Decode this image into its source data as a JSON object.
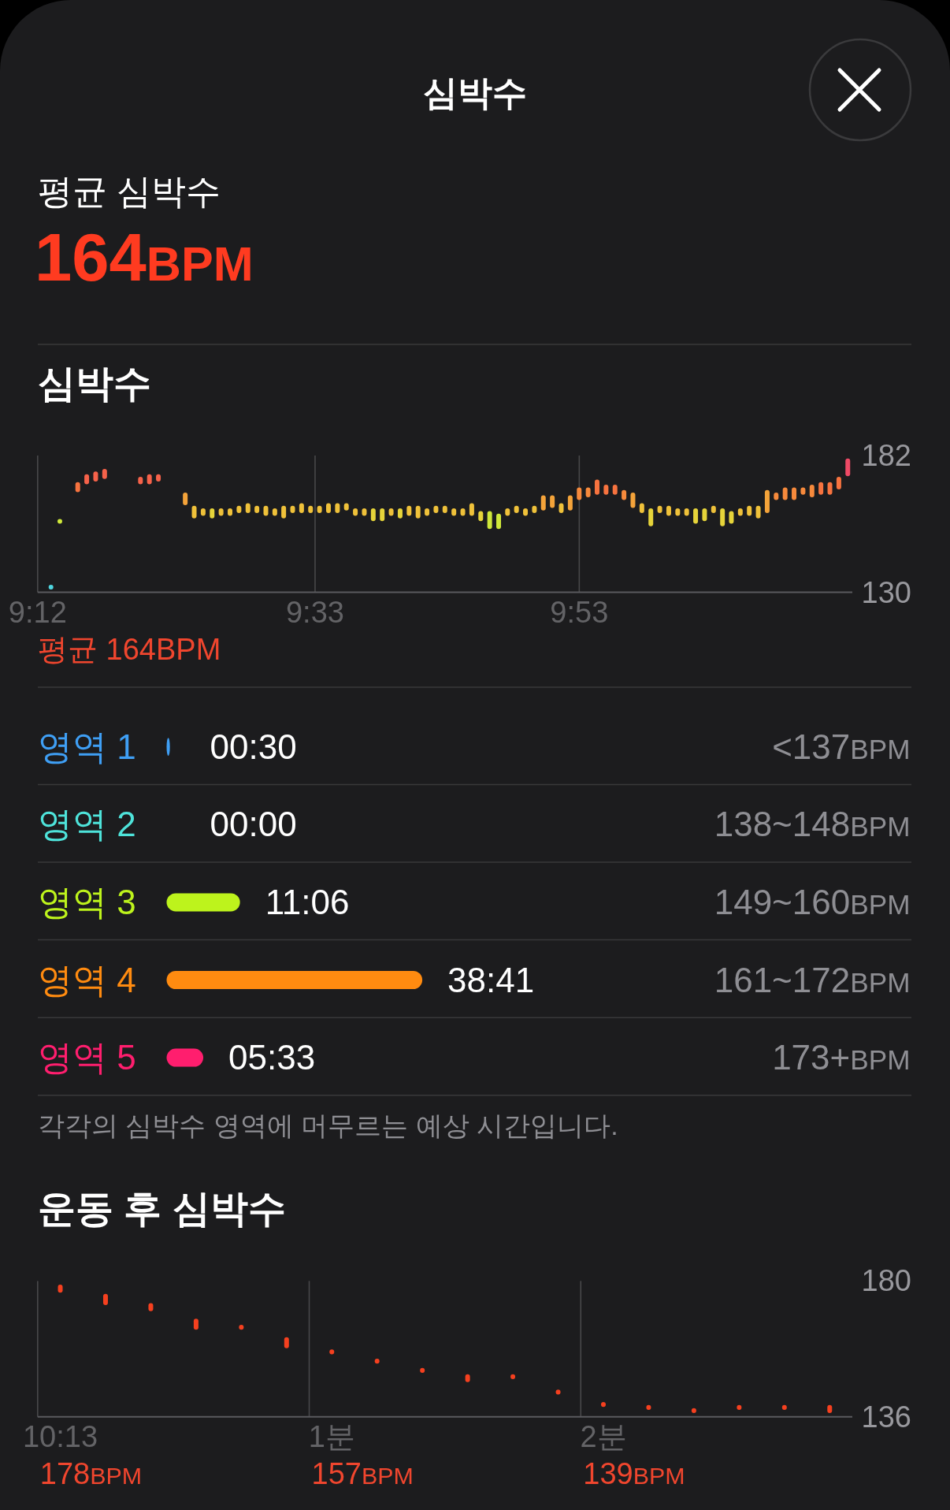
{
  "chart_data": [
    {
      "type": "other",
      "title": "심박수",
      "subtitle": "평균 심박수",
      "annotations": [
        "164BPM"
      ]
    },
    {
      "type": "bar",
      "title": "심박수",
      "xlim": [
        9.2,
        10.2278
      ],
      "xticks": [
        {
          "value": 9.2,
          "label": "9:12"
        },
        {
          "value": 9.55,
          "label": "9:33"
        },
        {
          "value": 9.8833,
          "label": "9:53"
        }
      ],
      "ylim": [
        130,
        182
      ],
      "yticks": [
        182,
        130
      ],
      "grid": "x",
      "x": [
        9.2168,
        9.228,
        9.2506,
        9.2619,
        9.2732,
        9.2845,
        9.3297,
        9.341,
        9.3523,
        9.3862,
        9.3975,
        9.4088,
        9.4201,
        9.4314,
        9.4427,
        9.454,
        9.4653,
        9.4766,
        9.4879,
        9.4992,
        9.5104,
        9.5217,
        9.533,
        9.5443,
        9.5556,
        9.5669,
        9.5782,
        9.5895,
        9.6008,
        9.6121,
        9.6234,
        9.6347,
        9.646,
        9.6573,
        9.6686,
        9.6799,
        9.6912,
        9.7025,
        9.7138,
        9.7251,
        9.7364,
        9.7477,
        9.759,
        9.7703,
        9.7816,
        9.7928,
        9.8041,
        9.8154,
        9.8267,
        9.838,
        9.8493,
        9.8606,
        9.8719,
        9.8832,
        9.8945,
        9.9058,
        9.9171,
        9.9284,
        9.9397,
        9.951,
        9.9623,
        9.9736,
        9.9849,
        9.9962,
        10.0075,
        10.0188,
        10.0301,
        10.0414,
        10.0527,
        10.064,
        10.0752,
        10.0865,
        10.0978,
        10.1091,
        10.1204,
        10.1317,
        10.143,
        10.1543,
        10.1656,
        10.1769,
        10.1882,
        10.1995,
        10.2108,
        10.2221
      ],
      "base": [
        131.1,
        156.1,
        168.1,
        171.1,
        172.1,
        173.1,
        171.1,
        171.1,
        172.1,
        163.1,
        158.1,
        159.1,
        158.1,
        159.1,
        159.1,
        160.1,
        160.1,
        160.1,
        159.1,
        159.1,
        158.1,
        160.1,
        160.1,
        160.1,
        160.1,
        160.1,
        160.1,
        161.1,
        159.1,
        159.1,
        157.1,
        157.1,
        159.1,
        158.1,
        159.1,
        158.1,
        159.1,
        160.1,
        160.1,
        159.1,
        159.1,
        159.1,
        157.1,
        154.1,
        154.1,
        159.1,
        160.1,
        159.1,
        160.1,
        161.1,
        162.1,
        160.1,
        161.1,
        165.1,
        166.1,
        167.1,
        167.1,
        167.1,
        165.1,
        162.1,
        160.1,
        155.1,
        160.1,
        159.1,
        159.1,
        159.1,
        156.1,
        157.1,
        160.1,
        155.1,
        156.1,
        159.1,
        159.1,
        158.1,
        160.1,
        165.1,
        165.1,
        165.1,
        167.1,
        166.1,
        167.1,
        167.1,
        169.1,
        174.1
      ],
      "values": [
        1.8,
        1.8,
        3.8,
        3.8,
        3.8,
        3.8,
        2.8,
        3.8,
        2.8,
        4.8,
        4.8,
        2.8,
        3.8,
        2.8,
        2.8,
        2.8,
        3.8,
        2.8,
        3.8,
        2.8,
        4.8,
        2.8,
        3.8,
        2.8,
        2.8,
        3.8,
        3.8,
        2.8,
        2.8,
        2.8,
        4.8,
        4.8,
        2.8,
        3.8,
        3.8,
        4.8,
        2.8,
        2.8,
        2.8,
        2.8,
        2.8,
        4.8,
        3.8,
        6.8,
        5.8,
        2.8,
        2.8,
        2.8,
        2.8,
        5.8,
        4.8,
        3.8,
        5.8,
        4.8,
        3.8,
        5.8,
        3.8,
        3.8,
        3.8,
        5.8,
        3.8,
        6.8,
        2.8,
        3.8,
        2.8,
        2.8,
        5.8,
        4.8,
        2.8,
        6.8,
        4.8,
        2.8,
        3.8,
        4.8,
        8.8,
        2.8,
        4.8,
        4.8,
        2.8,
        4.8,
        4.8,
        4.8,
        4.8,
        6.8
      ],
      "colors": [
        "#4fd6e0",
        "#cfe83a",
        "#f7733f",
        "#f6624a",
        "#f6624a",
        "#f6624a",
        "#f6624a",
        "#f6624a",
        "#f6624a",
        "#f4a33a",
        "#efc13a",
        "#efc13a",
        "#e6d43a",
        "#efc13a",
        "#efc13a",
        "#efc13a",
        "#efc13a",
        "#efc13a",
        "#efc13a",
        "#efc13a",
        "#efc13a",
        "#efc13a",
        "#efc13a",
        "#efc13a",
        "#efc13a",
        "#efc13a",
        "#efc13a",
        "#efc13a",
        "#efc13a",
        "#efc13a",
        "#e6d43a",
        "#e6d43a",
        "#efc13a",
        "#e6d43a",
        "#efc13a",
        "#efc13a",
        "#efc13a",
        "#efc13a",
        "#efc13a",
        "#efc13a",
        "#efc13a",
        "#efc13a",
        "#e6d43a",
        "#cfe83a",
        "#cfe83a",
        "#efc13a",
        "#efc13a",
        "#efc13a",
        "#efc13a",
        "#f4a33a",
        "#f4a33a",
        "#efc13a",
        "#f4a33a",
        "#f78a3c",
        "#f78a3c",
        "#f7733f",
        "#f7733f",
        "#f7733f",
        "#f78a3c",
        "#f4a33a",
        "#efc13a",
        "#e6d43a",
        "#efc13a",
        "#efc13a",
        "#efc13a",
        "#efc13a",
        "#e6d43a",
        "#e6d43a",
        "#efc13a",
        "#e6d43a",
        "#e6d43a",
        "#efc13a",
        "#efc13a",
        "#efc13a",
        "#f4a33a",
        "#f78a3c",
        "#f78a3c",
        "#f78a3c",
        "#f78a3c",
        "#f78a3c",
        "#f7733f",
        "#f7733f",
        "#f7733f",
        "#ef4a66"
      ],
      "annotations": [
        "평균 164BPM"
      ]
    },
    {
      "type": "bar",
      "orientation": "horizontal",
      "categories": [
        "영역 1",
        "영역 2",
        "영역 3",
        "영역 4",
        "영역 5"
      ],
      "values": [
        0.5,
        0,
        11.1,
        38.6833,
        5.55
      ],
      "value_labels": [
        "00:30",
        "00:00",
        "11:06",
        "38:41",
        "05:33"
      ],
      "colors": [
        "#3f9ff5",
        "#4ee3da",
        "#bdf31c",
        "#ff8b10",
        "#ff1e6e"
      ],
      "annotations": [
        "<137BPM",
        "138~148BPM",
        "149~160BPM",
        "161~172BPM",
        "173+BPM",
        "각각의 심박수 영역에 머무르는 예상 시간입니다."
      ]
    },
    {
      "type": "bar",
      "title": "운동 후 심박수",
      "categories": [
        "10:13",
        null,
        null,
        null,
        null,
        null,
        "1분",
        null,
        null,
        null,
        null,
        null,
        "2분",
        null,
        null,
        null,
        null,
        null
      ],
      "ylim": [
        136,
        180
      ],
      "yticks": [
        180,
        136
      ],
      "grid": "x",
      "color": "#f5401f",
      "base": [
        176.2,
        172.2,
        170.2,
        164.2,
        164.2,
        158.2,
        156.2,
        153.2,
        150.2,
        147.2,
        148.2,
        143.2,
        139.2,
        138.2,
        137.2,
        138.2,
        138.2,
        137.2
      ],
      "values": [
        2.6,
        3.6,
        2.6,
        3.6,
        1.6,
        3.6,
        1.6,
        1.6,
        1.6,
        2.6,
        1.6,
        1.6,
        1.6,
        1.6,
        1.6,
        1.6,
        1.6,
        2.6
      ],
      "annotations": [
        "178BPM",
        "157BPM",
        "139BPM"
      ]
    }
  ]
}
